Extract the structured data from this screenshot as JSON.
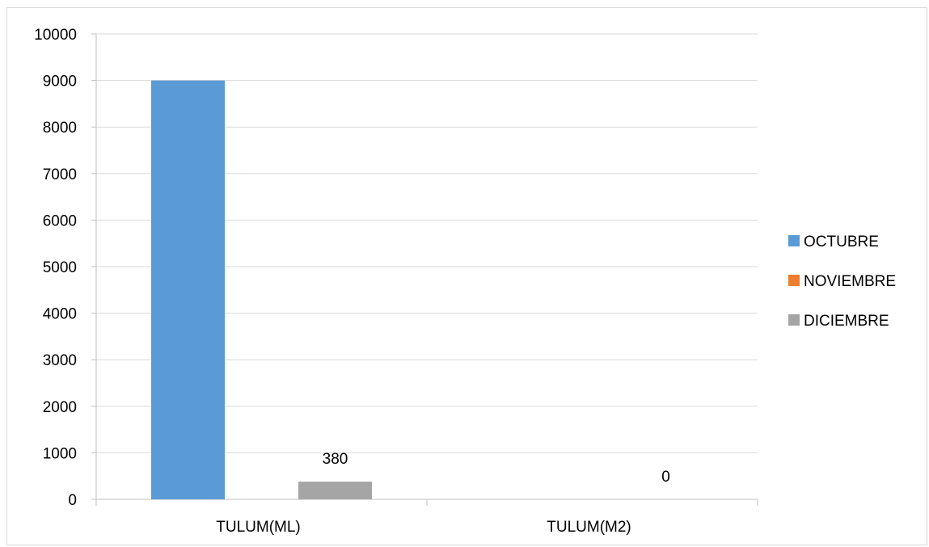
{
  "chart_data": {
    "type": "bar",
    "categories": [
      "TULUM(ML)",
      "TULUM(M2)"
    ],
    "series": [
      {
        "name": "OCTUBRE",
        "color": "#5B9BD5",
        "values": [
          9000,
          0
        ]
      },
      {
        "name": "NOVIEMBRE",
        "color": "#ED7D31",
        "values": [
          0,
          0
        ]
      },
      {
        "name": "DICIEMBRE",
        "color": "#A5A5A5",
        "values": [
          380,
          0
        ]
      }
    ],
    "data_labels": [
      {
        "series": 2,
        "category": 0,
        "text": "380"
      },
      {
        "series": 2,
        "category": 1,
        "text": "0"
      }
    ],
    "title": "",
    "xlabel": "",
    "ylabel": "",
    "ylim": [
      0,
      10000
    ],
    "yticks": [
      0,
      1000,
      2000,
      3000,
      4000,
      5000,
      6000,
      7000,
      8000,
      9000,
      10000
    ],
    "grid": true,
    "legend_position": "right"
  }
}
